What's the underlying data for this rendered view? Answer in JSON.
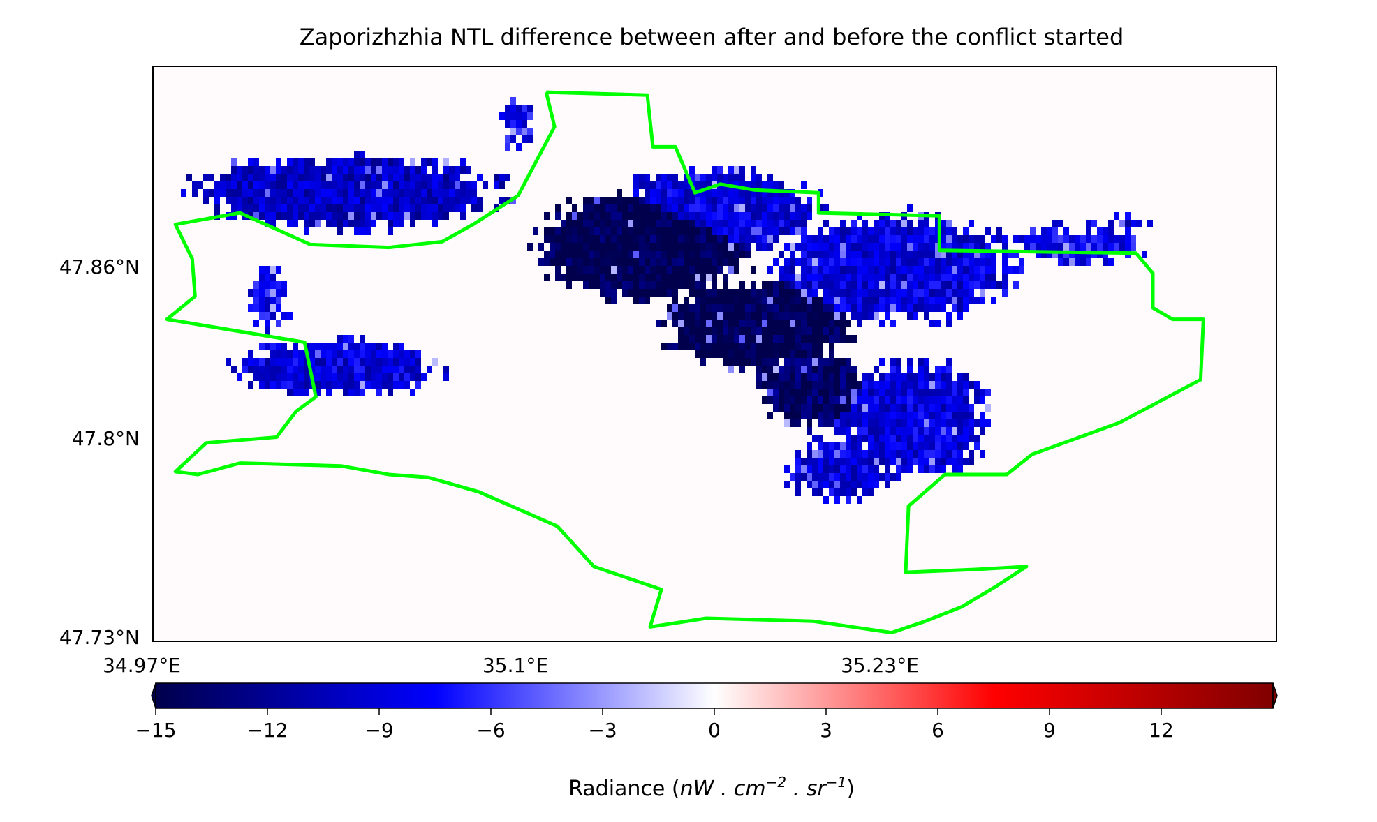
{
  "chart_data": {
    "type": "heatmap",
    "title": "Zaporizhzhia NTL difference between after and before the conflict started",
    "x_tick_labels": [
      "34.97°E",
      "35.1°E",
      "35.23°E"
    ],
    "y_tick_labels": [
      "47.73°N",
      "47.8°N",
      "47.86°N"
    ],
    "x_ticks": [
      34.97,
      35.1,
      35.23
    ],
    "y_ticks": [
      47.73,
      47.8,
      47.86
    ],
    "xlim": [
      34.97,
      35.37
    ],
    "ylim": [
      47.73,
      47.93
    ],
    "grid": false,
    "colormap": "seismic",
    "colorbar": {
      "range": [
        -15,
        15
      ],
      "extend": "both",
      "ticks": [
        -15,
        -12,
        -9,
        -6,
        -3,
        0,
        3,
        6,
        9,
        12
      ],
      "tick_labels": [
        "−15",
        "−12",
        "−9",
        "−6",
        "−3",
        "0",
        "3",
        "6",
        "9",
        "12"
      ],
      "label_text": "Radiance (",
      "label_var": "nW . cm",
      "label_exp1": "−2",
      "label_mid": " . sr",
      "label_exp2": "−1",
      "label_end": ")",
      "colors": [
        "#00004c",
        "#0000ff",
        "#ffffff",
        "#ff0000",
        "#800000"
      ]
    },
    "boundary": {
      "color": "#00ff00",
      "description_series": "admin boundary outline (lon, lat)",
      "points": [
        [
          35.11,
          47.921
        ],
        [
          35.146,
          47.92
        ],
        [
          35.148,
          47.902
        ],
        [
          35.156,
          47.902
        ],
        [
          35.163,
          47.886
        ],
        [
          35.172,
          47.889
        ],
        [
          35.184,
          47.887
        ],
        [
          35.207,
          47.886
        ],
        [
          35.207,
          47.879
        ],
        [
          35.25,
          47.878
        ],
        [
          35.25,
          47.866
        ],
        [
          35.32,
          47.865
        ],
        [
          35.326,
          47.858
        ],
        [
          35.326,
          47.846
        ],
        [
          35.333,
          47.842
        ],
        [
          35.344,
          47.842
        ],
        [
          35.343,
          47.821
        ],
        [
          35.314,
          47.806
        ],
        [
          35.283,
          47.795
        ],
        [
          35.274,
          47.788
        ],
        [
          35.252,
          47.788
        ],
        [
          35.239,
          47.777
        ],
        [
          35.238,
          47.754
        ],
        [
          35.263,
          47.755
        ],
        [
          35.281,
          47.756
        ],
        [
          35.27,
          47.749
        ],
        [
          35.258,
          47.742
        ],
        [
          35.245,
          47.737
        ],
        [
          35.233,
          47.733
        ],
        [
          35.205,
          47.737
        ],
        [
          35.167,
          47.738
        ],
        [
          35.147,
          47.735
        ],
        [
          35.151,
          47.748
        ],
        [
          35.127,
          47.756
        ],
        [
          35.114,
          47.77
        ],
        [
          35.086,
          47.782
        ],
        [
          35.068,
          47.787
        ],
        [
          35.054,
          47.788
        ],
        [
          35.037,
          47.791
        ],
        [
          35.001,
          47.792
        ],
        [
          34.986,
          47.788
        ],
        [
          34.978,
          47.789
        ],
        [
          34.989,
          47.799
        ],
        [
          35.014,
          47.801
        ],
        [
          35.021,
          47.81
        ],
        [
          35.028,
          47.815
        ],
        [
          35.024,
          47.834
        ],
        [
          34.975,
          47.842
        ],
        [
          34.985,
          47.85
        ],
        [
          34.984,
          47.863
        ],
        [
          34.978,
          47.875
        ],
        [
          35.001,
          47.879
        ],
        [
          35.026,
          47.868
        ],
        [
          35.054,
          47.867
        ],
        [
          35.073,
          47.869
        ],
        [
          35.084,
          47.875
        ],
        [
          35.1,
          47.885
        ],
        [
          35.113,
          47.909
        ],
        [
          35.11,
          47.921
        ]
      ]
    }
  }
}
